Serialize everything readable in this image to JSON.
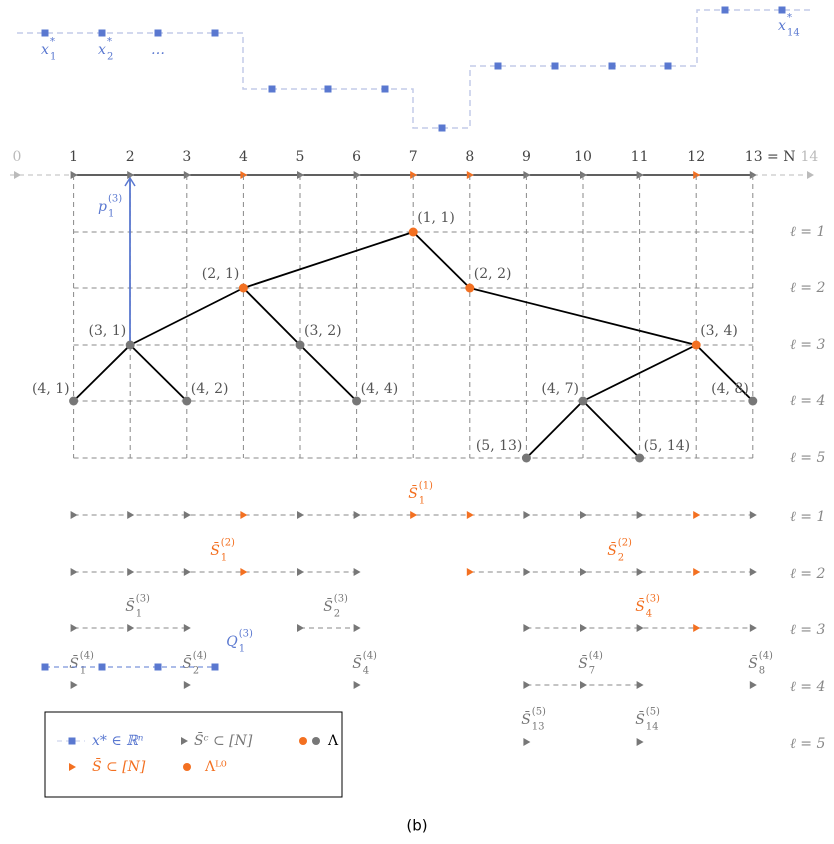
{
  "axis": {
    "ticks": [
      "0",
      "1",
      "2",
      "3",
      "4",
      "5",
      "6",
      "7",
      "8",
      "9",
      "10",
      "11",
      "12",
      "13 = N",
      "14"
    ]
  },
  "x_star_labels": [
    {
      "base": "x",
      "sup": "*",
      "sub": "1"
    },
    {
      "base": "x",
      "sup": "*",
      "sub": "2"
    },
    {
      "base": "…"
    },
    {
      "base": "x",
      "sup": "*",
      "sub": "14"
    }
  ],
  "path_label": {
    "base": "p",
    "sup": "(3)",
    "sub": "1"
  },
  "tree_levels": [
    "ℓ = 1",
    "ℓ = 2",
    "ℓ = 3",
    "ℓ = 4",
    "ℓ = 5"
  ],
  "nodes": [
    {
      "label": "(1, 1)"
    },
    {
      "label": "(2, 1)"
    },
    {
      "label": "(2, 2)"
    },
    {
      "label": "(3, 1)"
    },
    {
      "label": "(3, 2)"
    },
    {
      "label": "(3, 4)"
    },
    {
      "label": "(4, 1)"
    },
    {
      "label": "(4, 2)"
    },
    {
      "label": "(4, 4)"
    },
    {
      "label": "(4, 7)"
    },
    {
      "label": "(4, 8)"
    },
    {
      "label": "(5, 13)"
    },
    {
      "label": "(5, 14)"
    }
  ],
  "subset_levels": [
    "ℓ = 1",
    "ℓ = 2",
    "ℓ = 3",
    "ℓ = 4",
    "ℓ = 5"
  ],
  "subsets": [
    {
      "base": "S̄",
      "sub": "1",
      "sup": "(1)"
    },
    {
      "base": "S̄",
      "sub": "1",
      "sup": "(2)"
    },
    {
      "base": "S̄",
      "sub": "2",
      "sup": "(2)"
    },
    {
      "base": "S̄",
      "sub": "1",
      "sup": "(3)"
    },
    {
      "base": "S̄",
      "sub": "2",
      "sup": "(3)"
    },
    {
      "base": "S̄",
      "sub": "4",
      "sup": "(3)"
    },
    {
      "base": "S̄",
      "sub": "1",
      "sup": "(4)"
    },
    {
      "base": "S̄",
      "sub": "2",
      "sup": "(4)"
    },
    {
      "base": "S̄",
      "sub": "4",
      "sup": "(4)"
    },
    {
      "base": "S̄",
      "sub": "7",
      "sup": "(4)"
    },
    {
      "base": "S̄",
      "sub": "8",
      "sup": "(4)"
    },
    {
      "base": "S̄",
      "sub": "13",
      "sup": "(5)"
    },
    {
      "base": "S̄",
      "sub": "14",
      "sup": "(5)"
    }
  ],
  "q_label": {
    "base": "Q",
    "sub": "1",
    "sup": "(3)"
  },
  "legend": [
    "x* ∈ ℝⁿ",
    "S̄ᶜ ⊂ [N]",
    "Λ",
    "S̄ ⊂ [N]",
    "Λᴸ⁰"
  ],
  "caption": "(b)"
}
